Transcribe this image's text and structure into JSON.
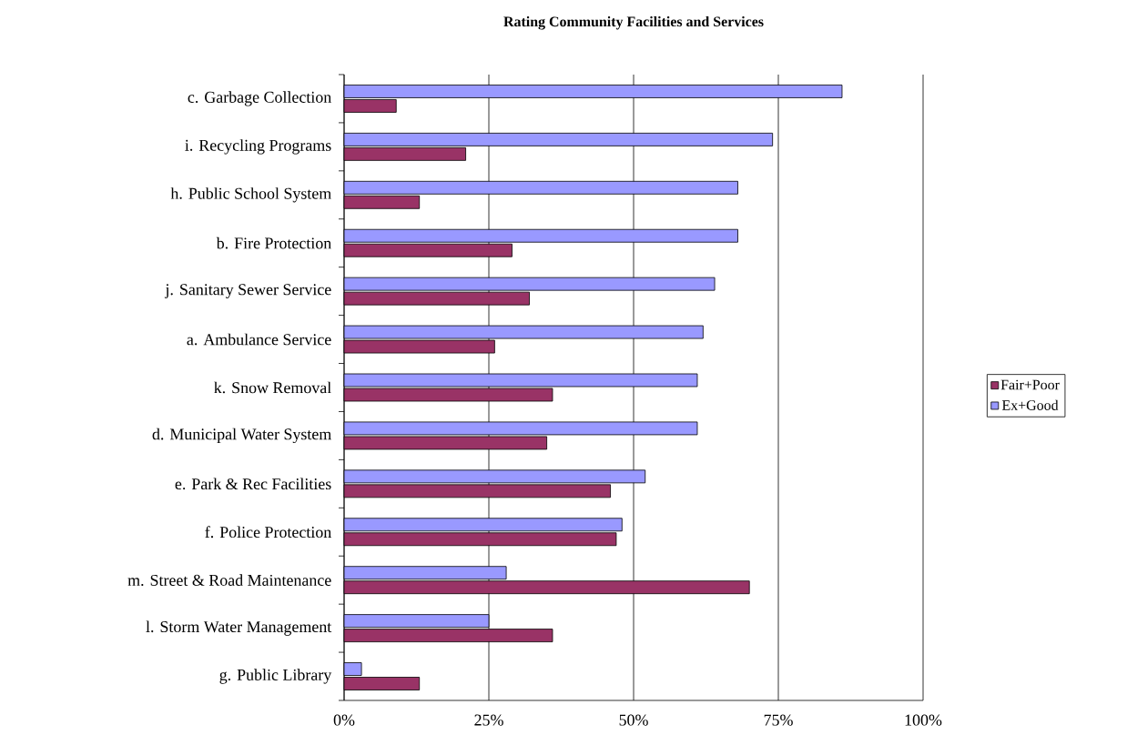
{
  "chart_data": {
    "type": "bar",
    "orientation": "horizontal",
    "title": "Rating Community Facilities and Services",
    "categories": [
      "c.  Garbage Collection",
      "i.   Recycling Programs",
      "h.  Public School System",
      "b.  Fire Protection",
      "j.   Sanitary Sewer Service",
      "a.  Ambulance Service",
      "k.  Snow Removal",
      "d.  Municipal Water System",
      "e.  Park & Rec Facilities",
      "f.   Police Protection",
      "m. Street & Road Maintenance",
      "l.   Storm Water Management",
      "g.  Public Library"
    ],
    "series": [
      {
        "name": "Fair+Poor",
        "color": "#993366",
        "values": [
          9,
          21,
          13,
          29,
          32,
          26,
          36,
          35,
          46,
          47,
          70,
          36,
          13
        ]
      },
      {
        "name": "Ex+Good",
        "color": "#9999ff",
        "values": [
          86,
          74,
          68,
          68,
          64,
          62,
          61,
          61,
          52,
          48,
          28,
          25,
          3
        ]
      }
    ],
    "xlim": [
      0,
      100
    ],
    "xticks": [
      {
        "value": 0,
        "label": "0%"
      },
      {
        "value": 25,
        "label": "25%"
      },
      {
        "value": 50,
        "label": "50%"
      },
      {
        "value": 75,
        "label": "75%"
      },
      {
        "value": 100,
        "label": "100%"
      }
    ],
    "grid": "x",
    "legend": "right"
  }
}
